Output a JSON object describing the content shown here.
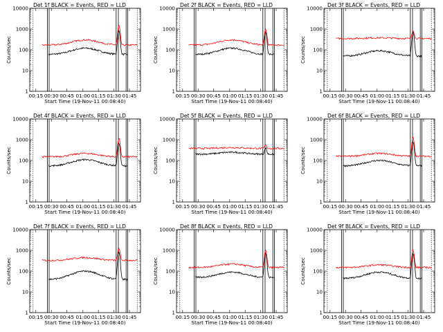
{
  "chart_data": [
    {
      "type": "line",
      "title": "Det 1f BLACK = Events, RED = LLD",
      "xlabel": "Start Time (19-Nov-11 00:08:40)",
      "ylabel": "Counts/sec",
      "ylim": [
        1,
        10000
      ],
      "yscale": "log",
      "x_ticks": [
        "00:15",
        "00:30",
        "00:45",
        "01:00",
        "01:15",
        "01:30",
        "01:45"
      ],
      "y_ticks": [
        "1",
        "10",
        "100",
        "1000",
        "10000"
      ],
      "series": [
        {
          "name": "Events",
          "color": "#000000",
          "base": 60,
          "mid": 120,
          "peak": 800
        },
        {
          "name": "LLD",
          "color": "#ff0000",
          "base": 170,
          "mid": 300,
          "peak": 1500
        }
      ]
    },
    {
      "type": "line",
      "title": "Det 2f BLACK = Events, RED = LLD",
      "xlabel": "Start Time (19-Nov-11 00:08:40)",
      "ylabel": "Counts/sec",
      "ylim": [
        1,
        10000
      ],
      "yscale": "log",
      "x_ticks": [
        "00:15",
        "00:30",
        "00:45",
        "01:00",
        "01:15",
        "01:30",
        "01:45"
      ],
      "y_ticks": [
        "1",
        "10",
        "100",
        "1000",
        "10000"
      ],
      "series": [
        {
          "name": "Events",
          "color": "#000000",
          "base": 60,
          "mid": 120,
          "peak": 700
        },
        {
          "name": "LLD",
          "color": "#ff0000",
          "base": 170,
          "mid": 300,
          "peak": 1000
        }
      ]
    },
    {
      "type": "line",
      "title": "Det 3f BLACK = Events, RED = LLD",
      "xlabel": "Start Time (19-Nov-11 00:08:40)",
      "ylabel": "Counts/sec",
      "ylim": [
        1,
        10000
      ],
      "yscale": "log",
      "x_ticks": [
        "00:15",
        "00:30",
        "00:45",
        "01:00",
        "01:15",
        "01:30",
        "01:45"
      ],
      "y_ticks": [
        "1",
        "10",
        "100",
        "1000",
        "10000"
      ],
      "series": [
        {
          "name": "Events",
          "color": "#000000",
          "base": 50,
          "mid": 90,
          "peak": 700
        },
        {
          "name": "LLD",
          "color": "#ff0000",
          "base": 350,
          "mid": 380,
          "peak": 900
        }
      ]
    },
    {
      "type": "line",
      "title": "Det 4f BLACK = Events, RED = LLD",
      "xlabel": "Start Time (19-Nov-11 00:08:40)",
      "ylabel": "Counts/sec",
      "ylim": [
        1,
        10000
      ],
      "yscale": "log",
      "x_ticks": [
        "00:15",
        "00:30",
        "00:45",
        "01:00",
        "01:15",
        "01:30",
        "01:45"
      ],
      "y_ticks": [
        "1",
        "10",
        "100",
        "1000",
        "10000"
      ],
      "series": [
        {
          "name": "Events",
          "color": "#000000",
          "base": 55,
          "mid": 110,
          "peak": 700
        },
        {
          "name": "LLD",
          "color": "#ff0000",
          "base": 150,
          "mid": 220,
          "peak": 1200
        }
      ]
    },
    {
      "type": "line",
      "title": "Det 5f BLACK = Events, RED = LLD",
      "xlabel": "Start Time (19-Nov-11 00:08:40)",
      "ylabel": "Counts/sec",
      "ylim": [
        1,
        10000
      ],
      "yscale": "log",
      "x_ticks": [
        "00:15",
        "00:30",
        "00:45",
        "01:00",
        "01:15",
        "01:30",
        "01:45"
      ],
      "y_ticks": [
        "1",
        "10",
        "100",
        "1000",
        "10000"
      ],
      "series": [
        {
          "name": "Events",
          "color": "#000000",
          "base": 200,
          "mid": 250,
          "peak": 400
        },
        {
          "name": "LLD",
          "color": "#ff0000",
          "base": 380,
          "mid": 420,
          "peak": 550
        }
      ]
    },
    {
      "type": "line",
      "title": "Det 6f BLACK = Events, RED = LLD",
      "xlabel": "Start Time (19-Nov-11 00:08:40)",
      "ylabel": "Counts/sec",
      "ylim": [
        1,
        10000
      ],
      "yscale": "log",
      "x_ticks": [
        "00:15",
        "00:30",
        "00:45",
        "01:00",
        "01:15",
        "01:30",
        "01:45"
      ],
      "y_ticks": [
        "1",
        "10",
        "100",
        "1000",
        "10000"
      ],
      "series": [
        {
          "name": "Events",
          "color": "#000000",
          "base": 55,
          "mid": 100,
          "peak": 800
        },
        {
          "name": "LLD",
          "color": "#ff0000",
          "base": 160,
          "mid": 220,
          "peak": 1300
        }
      ]
    },
    {
      "type": "line",
      "title": "Det 7f BLACK = Events, RED = LLD",
      "xlabel": "Start Time (19-Nov-11 00:08:40)",
      "ylabel": "Counts/sec",
      "ylim": [
        1,
        10000
      ],
      "yscale": "log",
      "x_ticks": [
        "00:15",
        "00:30",
        "00:45",
        "01:00",
        "01:15",
        "01:30",
        "01:45"
      ],
      "y_ticks": [
        "1",
        "10",
        "100",
        "1000",
        "10000"
      ],
      "series": [
        {
          "name": "Events",
          "color": "#000000",
          "base": 40,
          "mid": 100,
          "peak": 800
        },
        {
          "name": "LLD",
          "color": "#ff0000",
          "base": 330,
          "mid": 450,
          "peak": 1300
        }
      ]
    },
    {
      "type": "line",
      "title": "Det 8f BLACK = Events, RED = LLD",
      "xlabel": "Start Time (19-Nov-11 00:08:40)",
      "ylabel": "Counts/sec",
      "ylim": [
        1,
        10000
      ],
      "yscale": "log",
      "x_ticks": [
        "00:15",
        "00:30",
        "00:45",
        "01:00",
        "01:15",
        "01:30",
        "01:45"
      ],
      "y_ticks": [
        "1",
        "10",
        "100",
        "1000",
        "10000"
      ],
      "series": [
        {
          "name": "Events",
          "color": "#000000",
          "base": 50,
          "mid": 90,
          "peak": 700
        },
        {
          "name": "LLD",
          "color": "#ff0000",
          "base": 150,
          "mid": 220,
          "peak": 1000
        }
      ]
    },
    {
      "type": "line",
      "title": "Det 9f BLACK = Events, RED = LLD",
      "xlabel": "Start Time (19-Nov-11 00:08:40)",
      "ylabel": "Counts/sec",
      "ylim": [
        1,
        10000
      ],
      "yscale": "log",
      "x_ticks": [
        "00:15",
        "00:30",
        "00:45",
        "01:00",
        "01:15",
        "01:30",
        "01:45"
      ],
      "y_ticks": [
        "1",
        "10",
        "100",
        "1000",
        "10000"
      ],
      "series": [
        {
          "name": "Events",
          "color": "#000000",
          "base": 45,
          "mid": 90,
          "peak": 700
        },
        {
          "name": "LLD",
          "color": "#ff0000",
          "base": 150,
          "mid": 200,
          "peak": 1000
        }
      ]
    }
  ]
}
